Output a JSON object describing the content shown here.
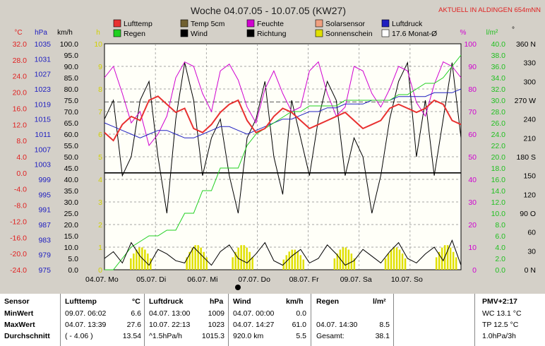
{
  "chart_data": {
    "type": "line",
    "title": "Woche 04.07.05 - 10.07.05 (KW27)",
    "banner": "AKTUELL IN ALDINGEN 654mNN",
    "legend": [
      {
        "name": "Lufttemp",
        "color": "#e83030"
      },
      {
        "name": "Temp 5cm",
        "color": "#706030"
      },
      {
        "name": "Feuchte",
        "color": "#d000d0"
      },
      {
        "name": "Solarsensor",
        "color": "#f0a080"
      },
      {
        "name": "Luftdruck",
        "color": "#2020c0"
      },
      {
        "name": "Regen",
        "color": "#20d020"
      },
      {
        "name": "Wind",
        "color": "#000000"
      },
      {
        "name": "Richtung",
        "color": "#000000"
      },
      {
        "name": "Sonnenschein",
        "color": "#e0e000"
      },
      {
        "name": "17.6 Monat-Ø",
        "color": "#ffffff"
      }
    ],
    "axes": {
      "temp": {
        "label": "°C",
        "ticks": [
          "32.0",
          "28.0",
          "24.0",
          "20.0",
          "16.0",
          "12.0",
          "8.0",
          "4.0",
          "0.0",
          "-4.0",
          "-8.0",
          "-12.0",
          "-16.0",
          "-20.0",
          "-24.0"
        ],
        "color": "#e02020"
      },
      "hpa": {
        "label": "hPa",
        "ticks": [
          "1035",
          "1031",
          "1027",
          "1023",
          "1019",
          "1015",
          "1011",
          "1007",
          "1003",
          "999",
          "995",
          "991",
          "987",
          "983",
          "979",
          "975"
        ],
        "color": "#2020c0"
      },
      "kmh": {
        "label": "km/h",
        "ticks": [
          "100.0",
          "95.0",
          "90.0",
          "85.0",
          "80.0",
          "75.0",
          "70.0",
          "65.0",
          "60.0",
          "55.0",
          "50.0",
          "45.0",
          "40.0",
          "35.0",
          "30.0",
          "25.0",
          "20.0",
          "15.0",
          "10.0",
          "5.0",
          "0.0"
        ],
        "color": "#000000"
      },
      "h": {
        "label": "h",
        "ticks": [
          "10",
          "9",
          "8",
          "7",
          "6",
          "5",
          "4",
          "3",
          "2",
          "1",
          "0"
        ],
        "color": "#d0d000"
      },
      "pct": {
        "label": "%",
        "ticks": [
          "100",
          "90",
          "80",
          "70",
          "60",
          "50",
          "40",
          "30",
          "20",
          "10",
          "0"
        ],
        "color": "#d000d0"
      },
      "lm2": {
        "label": "l/m²",
        "ticks": [
          "40.0",
          "38.0",
          "36.0",
          "34.0",
          "32.0",
          "30.0",
          "28.0",
          "26.0",
          "24.0",
          "22.0",
          "20.0",
          "18.0",
          "16.0",
          "14.0",
          "12.0",
          "10.0",
          "8.0",
          "6.0",
          "4.0",
          "2.0",
          "0.0"
        ],
        "color": "#20c020"
      },
      "deg": {
        "label": "°",
        "ticks": [
          "360 N",
          "330",
          "300",
          "270 W",
          "240",
          "210",
          "180 S",
          "150",
          "120",
          "90 O",
          "60",
          "30",
          "0    N"
        ],
        "color": "#000000"
      }
    },
    "x_labels": [
      "04.07. Mo",
      "05.07. Di",
      "06.07. Mi",
      "07.07. Do",
      "08.07. Fr",
      "09.07. Sa",
      "10.07. So"
    ],
    "series": [
      {
        "name": "Lufttemp",
        "unit": "°C",
        "values": [
          10,
          8,
          12,
          14,
          13,
          18,
          19,
          17,
          15,
          16,
          11,
          10,
          12,
          15,
          17,
          18,
          13,
          10,
          11,
          14,
          16,
          15,
          13,
          11,
          12,
          13,
          14,
          15,
          13,
          11,
          12,
          13,
          16,
          17,
          16,
          15,
          16,
          18,
          17,
          13,
          12
        ]
      },
      {
        "name": "Feuchte",
        "unit": "%",
        "values": [
          85,
          90,
          78,
          65,
          70,
          55,
          60,
          68,
          85,
          92,
          90,
          78,
          70,
          88,
          91,
          84,
          72,
          65,
          80,
          88,
          78,
          70,
          72,
          88,
          92,
          78,
          68,
          72,
          90,
          88,
          78,
          72,
          80,
          90,
          88,
          74,
          68,
          82,
          92,
          90,
          85
        ]
      },
      {
        "name": "Luftdruck",
        "unit": "hPa",
        "values": [
          1014,
          1013,
          1012,
          1011,
          1010,
          1011,
          1012,
          1012,
          1011,
          1010,
          1010,
          1011,
          1012,
          1013,
          1013,
          1012,
          1011,
          1012,
          1013,
          1014,
          1015,
          1015,
          1016,
          1017,
          1017,
          1018,
          1018,
          1019,
          1019,
          1019,
          1020,
          1020,
          1020,
          1021,
          1021,
          1021,
          1021,
          1022,
          1022,
          1022,
          1023
        ]
      },
      {
        "name": "Regen",
        "unit": "l/m²",
        "values": [
          0,
          0,
          2,
          4,
          5,
          6,
          6,
          7,
          7,
          10,
          10,
          14,
          14,
          18,
          18,
          18,
          22,
          24,
          25,
          26,
          27,
          28,
          28,
          29,
          29,
          29,
          29,
          30,
          30,
          30,
          30,
          30,
          30,
          31,
          31,
          32,
          33,
          33,
          34,
          36,
          38
        ]
      },
      {
        "name": "Wind",
        "unit": "km/h",
        "values": [
          5,
          8,
          3,
          12,
          6,
          2,
          9,
          7,
          4,
          3,
          10,
          6,
          2,
          8,
          11,
          5,
          3,
          7,
          12,
          4,
          2,
          6,
          9,
          3,
          5,
          11,
          7,
          2,
          4,
          9,
          6,
          3,
          8,
          12,
          5,
          3,
          7,
          10,
          4,
          13,
          2
        ]
      },
      {
        "name": "Richtung",
        "unit": "°",
        "values": [
          240,
          270,
          150,
          180,
          270,
          300,
          180,
          90,
          240,
          330,
          270,
          150,
          210,
          240,
          150,
          90,
          210,
          240,
          300,
          180,
          120,
          270,
          210,
          150,
          240,
          300,
          270,
          150,
          210,
          180,
          90,
          150,
          240,
          300,
          330,
          180,
          270,
          150,
          240,
          330,
          210
        ]
      },
      {
        "name": "Sonnenschein",
        "unit": "h",
        "values": [
          [
            0.3,
            1.0
          ],
          [
            1.4,
            1.1
          ],
          [
            2.3,
            1.1
          ],
          [
            3.3,
            0.9
          ],
          [
            4.3,
            1.0
          ],
          [
            5.3,
            1.0
          ],
          [
            6.3,
            1.1
          ]
        ]
      }
    ],
    "reference": {
      "name": "17.6 Monat-Ø",
      "value": 17.6,
      "unit": "°C"
    }
  },
  "table": {
    "headers": {
      "sensor": "Sensor",
      "lufttemp": "Lufttemp",
      "lufttemp_unit": "°C",
      "luftdruck": "Luftdruck",
      "luftdruck_unit": "hPa",
      "wind": "Wind",
      "wind_unit": "km/h",
      "regen": "Regen",
      "regen_unit": "l/m²",
      "pmv": "PMV+2:17"
    },
    "rows": [
      {
        "label": "MinWert",
        "lt_time": "09.07.  06:02",
        "lt_val": "6.6",
        "ld_time": "04.07.  13:00",
        "ld_val": "1009",
        "w_time": "04.07.  00:00",
        "w_val": "0.0",
        "r_time": "",
        "r_val": "",
        "pmv": "WC 13.1 °C"
      },
      {
        "label": "MaxWert",
        "lt_time": "04.07.  13:39",
        "lt_val": "27.6",
        "ld_time": "10.07.  22:13",
        "ld_val": "1023",
        "w_time": "04.07.  14:27",
        "w_val": "61.0",
        "r_time": "04.07.  14:30",
        "r_val": "8.5",
        "pmv": "TP 12.5 °C"
      },
      {
        "label": "Durchschnitt",
        "lt_time": "( - 4.06 )",
        "lt_val": "13.54",
        "ld_time": "^1.5hPa/h",
        "ld_val": "1015.3",
        "w_time": "920.0 km",
        "w_val": "5.5",
        "r_time": "Gesamt:",
        "r_val": "38.1",
        "pmv": "1.0hPa/3h"
      }
    ]
  }
}
